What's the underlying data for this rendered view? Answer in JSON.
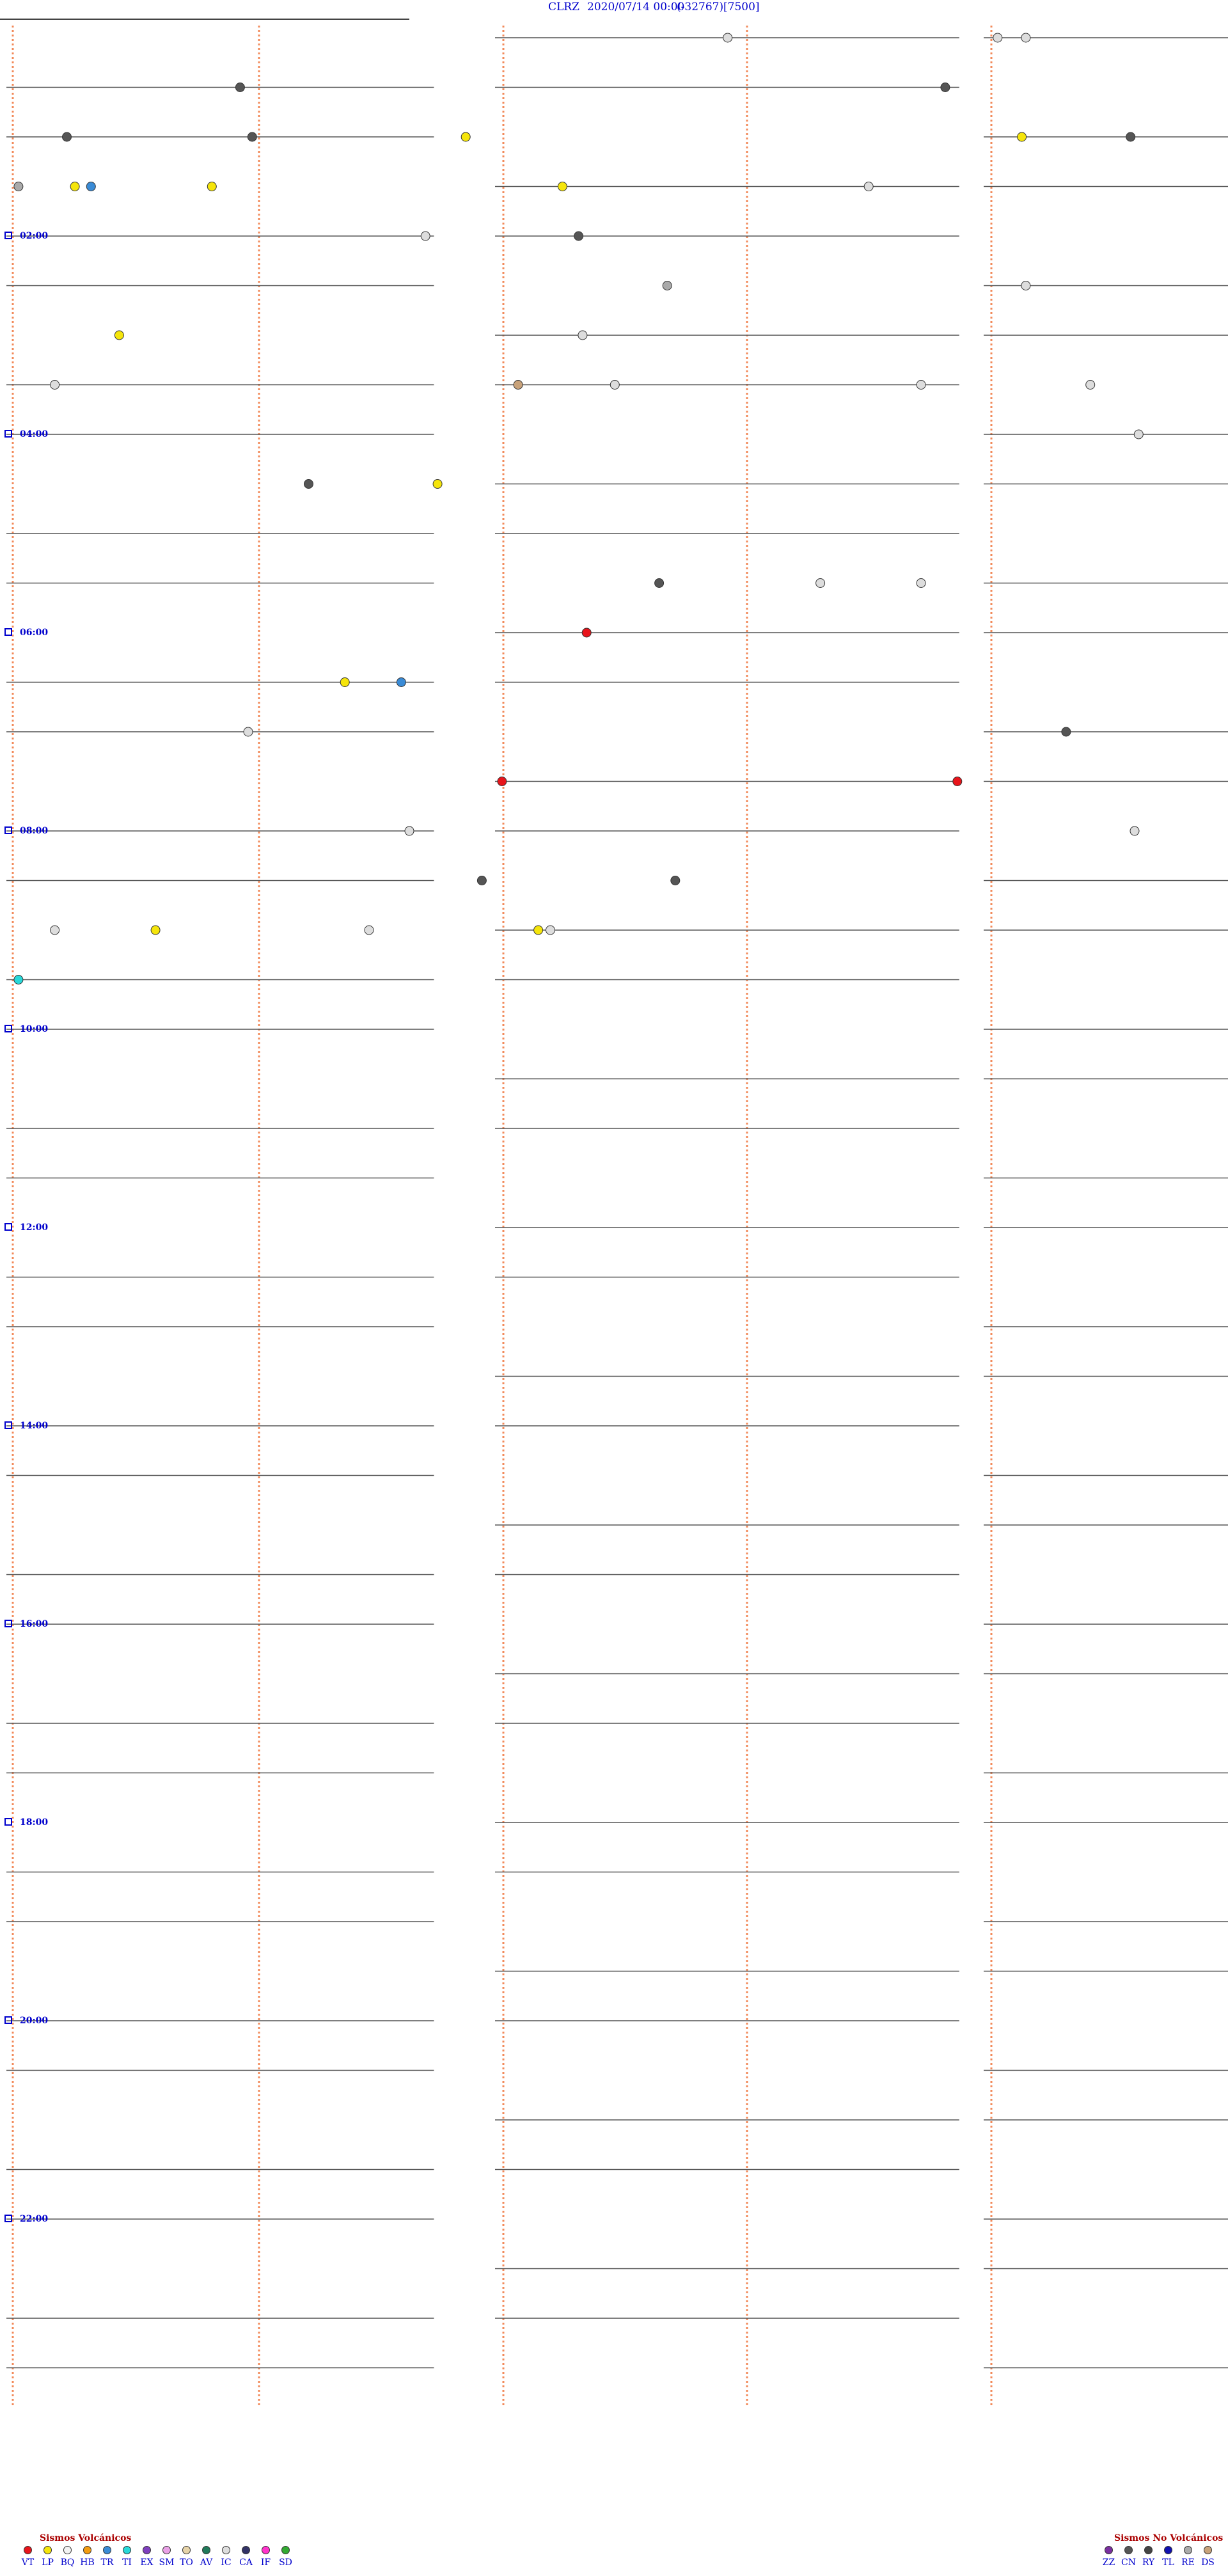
{
  "header": {
    "station": "CLRZ",
    "datetime": "2020/07/14 00:00",
    "offset": "(-32767)",
    "scale": "[7500]"
  },
  "legend_volcanic": {
    "title": "Sismos Volcánicos",
    "items": [
      {
        "code": "VT",
        "color": "#e8141b"
      },
      {
        "code": "LP",
        "color": "#f5e50b"
      },
      {
        "code": "BQ",
        "color": "#f3f3f3"
      },
      {
        "code": "HB",
        "color": "#f39c12"
      },
      {
        "code": "TR",
        "color": "#3a8bd6"
      },
      {
        "code": "TI",
        "color": "#27d8d8"
      },
      {
        "code": "EX",
        "color": "#7f3fbf"
      },
      {
        "code": "SM",
        "color": "#e9a0e6"
      },
      {
        "code": "TO",
        "color": "#e6d3a8"
      },
      {
        "code": "AV",
        "color": "#217a5a"
      },
      {
        "code": "IC",
        "color": "#dddddd"
      },
      {
        "code": "CA",
        "color": "#333366"
      },
      {
        "code": "IF",
        "color": "#ff33cc"
      },
      {
        "code": "SD",
        "color": "#33aa33"
      }
    ]
  },
  "legend_nonvolcanic": {
    "title": "Sismos No Volcánicos",
    "items": [
      {
        "code": "ZZ",
        "color": "#7a2fa0"
      },
      {
        "code": "CN",
        "color": "#555555"
      },
      {
        "code": "RY",
        "color": "#444444"
      },
      {
        "code": "TL",
        "color": "#1010b0"
      },
      {
        "code": "RE",
        "color": "#aaaaaa"
      },
      {
        "code": "DS",
        "color": "#c8a27a"
      }
    ]
  },
  "chart_data": {
    "type": "helicorder",
    "time_labels": [
      {
        "label": "02:00",
        "line": 4
      },
      {
        "label": "04:00",
        "line": 8
      },
      {
        "label": "06:00",
        "line": 12
      },
      {
        "label": "08:00",
        "line": 16
      },
      {
        "label": "10:00",
        "line": 20
      },
      {
        "label": "12:00",
        "line": 24
      },
      {
        "label": "14:00",
        "line": 28
      },
      {
        "label": "16:00",
        "line": 32
      },
      {
        "label": "18:00",
        "line": 36
      },
      {
        "label": "20:00",
        "line": 40
      },
      {
        "label": "22:00",
        "line": 44
      }
    ],
    "minute_markers": [
      0,
      15,
      30,
      45,
      60
    ],
    "events": [
      {
        "t": 17.9,
        "type": "IC"
      },
      {
        "t": 24.6,
        "type": "IC"
      },
      {
        "t": 25.3,
        "type": "IC"
      },
      {
        "t": 35.8,
        "type": "CN"
      },
      {
        "t": 53.3,
        "type": "CN"
      },
      {
        "t": 61.5,
        "type": "CN"
      },
      {
        "t": 71.4,
        "type": "LP"
      },
      {
        "t": 85.2,
        "type": "LP"
      },
      {
        "t": 92.1,
        "type": "TR"
      },
      {
        "t": 66.1,
        "type": "CN"
      },
      {
        "t": 87.9,
        "type": "CN"
      },
      {
        "t": 90.3,
        "type": "RE"
      },
      {
        "t": 91.7,
        "type": "LP"
      },
      {
        "t": 95.1,
        "type": "LP"
      },
      {
        "t": 103.8,
        "type": "LP"
      },
      {
        "t": 111.4,
        "type": "IC"
      },
      {
        "t": 130.4,
        "type": "IC"
      },
      {
        "t": 134.2,
        "type": "CN"
      },
      {
        "t": 166.4,
        "type": "RE"
      },
      {
        "t": 175.3,
        "type": "IC"
      },
      {
        "t": 182.8,
        "type": "LP"
      },
      {
        "t": 194.3,
        "type": "IC"
      },
      {
        "t": 211.2,
        "type": "IC"
      },
      {
        "t": 225.1,
        "type": "IC"
      },
      {
        "t": 222.7,
        "type": "DS"
      },
      {
        "t": 232.7,
        "type": "IC"
      },
      {
        "t": 236.9,
        "type": "IC"
      },
      {
        "t": 268.1,
        "type": "IC"
      },
      {
        "t": 277.5,
        "type": "CN"
      },
      {
        "t": 280.7,
        "type": "LP"
      },
      {
        "t": 346.2,
        "type": "CN"
      },
      {
        "t": 350.2,
        "type": "IC"
      },
      {
        "t": 352.7,
        "type": "IC"
      },
      {
        "t": 374.4,
        "type": "VT"
      },
      {
        "t": 398.4,
        "type": "LP"
      },
      {
        "t": 399.8,
        "type": "TR"
      },
      {
        "t": 426.0,
        "type": "IC"
      },
      {
        "t": 446.3,
        "type": "CN"
      },
      {
        "t": 462.3,
        "type": "VT"
      },
      {
        "t": 473.6,
        "type": "VT"
      },
      {
        "t": 490.0,
        "type": "IC"
      },
      {
        "t": 508.0,
        "type": "IC"
      },
      {
        "t": 521.8,
        "type": "CN"
      },
      {
        "t": 526.6,
        "type": "CN"
      },
      {
        "t": 549.0,
        "type": "IC"
      },
      {
        "t": 553.5,
        "type": "IC"
      },
      {
        "t": 541.2,
        "type": "IC"
      },
      {
        "t": 543.7,
        "type": "LP"
      },
      {
        "t": 553.2,
        "type": "LP"
      },
      {
        "t": 570.3,
        "type": "TI"
      }
    ],
    "baselines": 48,
    "minutes_per_line": 30
  }
}
